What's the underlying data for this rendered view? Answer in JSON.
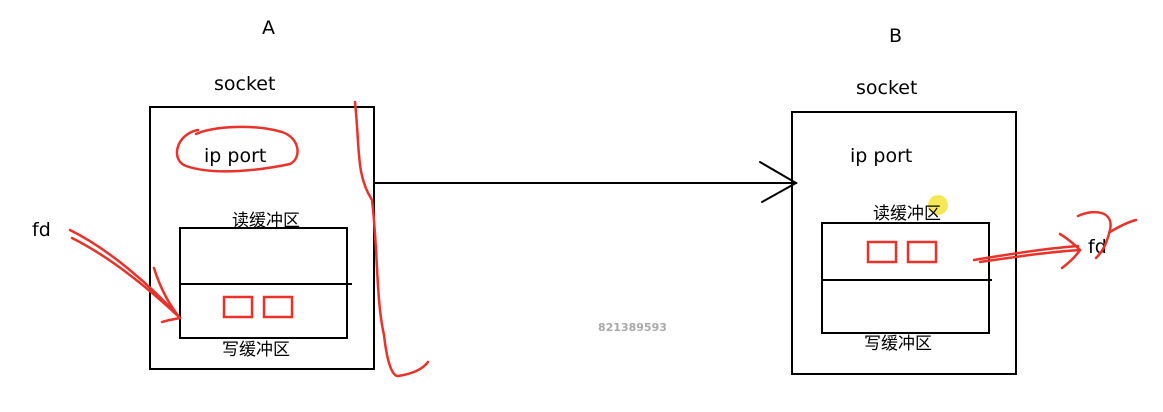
{
  "host_a": {
    "title": "A",
    "socket_label": "socket",
    "address_label": "ip  port",
    "read_buffer_label": "读缓冲区",
    "write_buffer_label": "写缓冲区",
    "fd_label": "fd"
  },
  "host_b": {
    "title": "B",
    "socket_label": "socket",
    "address_label": "ip  port",
    "read_buffer_label": "读缓冲区",
    "write_buffer_label": "写缓冲区",
    "fd_label": "fd"
  },
  "watermark": "821389593",
  "colors": {
    "ink": "#000000",
    "annotation": "#e8322a",
    "highlight": "#f5e33a"
  }
}
